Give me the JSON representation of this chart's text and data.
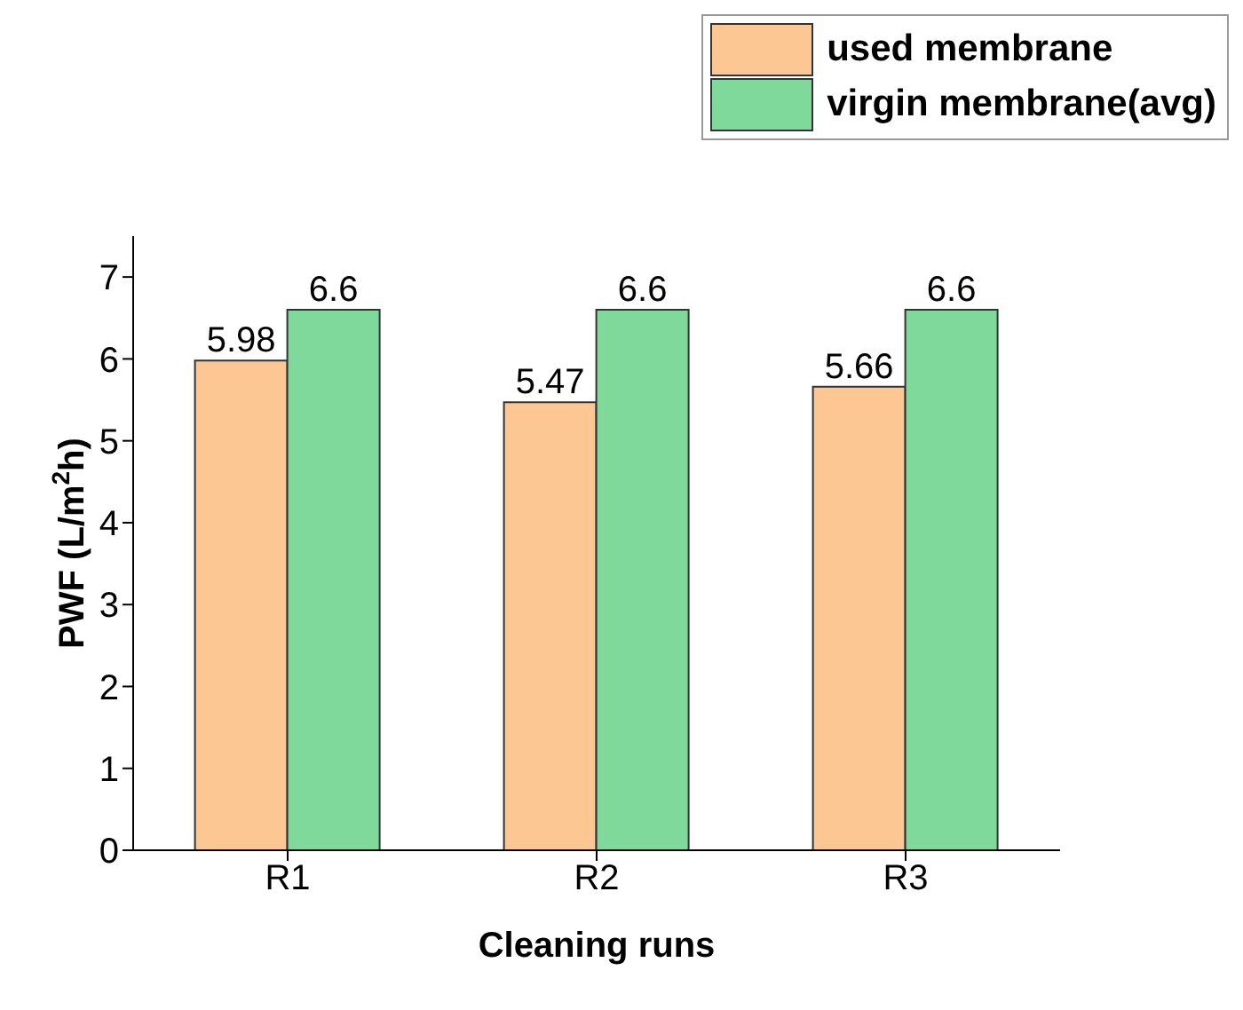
{
  "chart_data": {
    "type": "bar",
    "xlabel": "Cleaning runs",
    "ylabel": "PWF (L/m$^{2}$h)",
    "categories": [
      "R1",
      "R2",
      "R3"
    ],
    "series": [
      {
        "name": "used membrane",
        "color": "#fdc794",
        "values": [
          5.98,
          5.47,
          5.66
        ]
      },
      {
        "name": "virgin membrane(avg)",
        "color": "#7fd99b",
        "values": [
          6.6,
          6.6,
          6.6
        ]
      }
    ],
    "ylim": [
      0,
      7.5
    ],
    "yticks": [
      0,
      1,
      2,
      3,
      4,
      5,
      6,
      7
    ],
    "data_labels": true,
    "legend": "top right",
    "grid": false
  }
}
